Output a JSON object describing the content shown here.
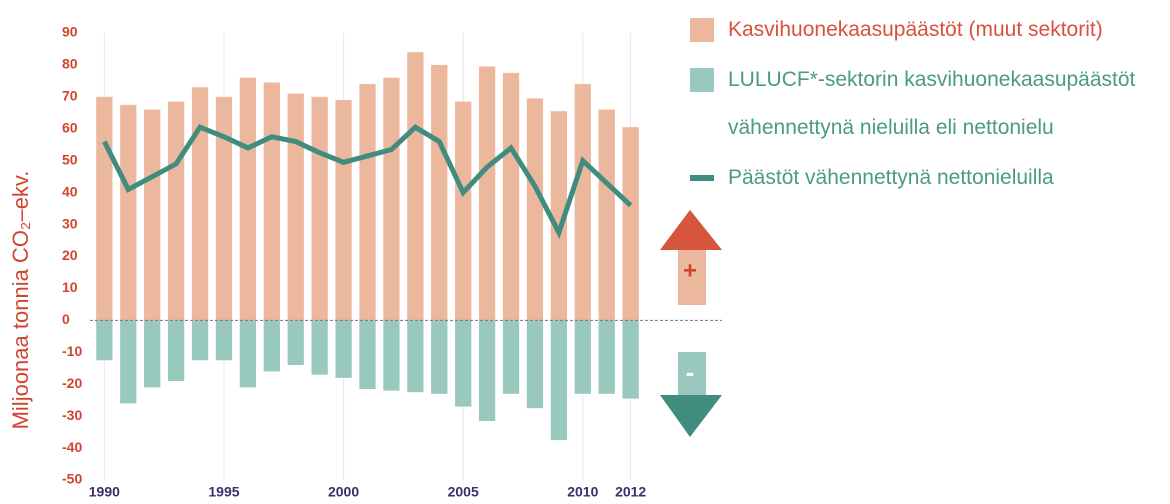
{
  "chart_data": {
    "type": "bar",
    "y_label": "Miljoonaa tonnia CO₂–ekv.",
    "x": [
      1990,
      1991,
      1992,
      1993,
      1994,
      1995,
      1996,
      1997,
      1998,
      1999,
      2000,
      2001,
      2002,
      2003,
      2004,
      2005,
      2006,
      2007,
      2008,
      2009,
      2010,
      2011,
      2012
    ],
    "xlim": [
      1989.4,
      2012.6
    ],
    "xticks": [
      1990,
      1995,
      2000,
      2005,
      2010,
      2012
    ],
    "ylim": [
      -50,
      90
    ],
    "yticks": [
      -50,
      -40,
      -30,
      -20,
      -10,
      0,
      10,
      20,
      30,
      40,
      50,
      60,
      70,
      80,
      90
    ],
    "grid": true,
    "legend": "right",
    "annotations": [
      "+",
      "-"
    ],
    "series": [
      {
        "name": "Kasvihuonekaasupäästöt (muut sektorit)",
        "color": "#ebb79d",
        "type": "bar",
        "values": [
          70,
          67.5,
          66,
          68.5,
          73,
          70,
          76,
          74.5,
          71,
          70,
          69,
          74,
          76,
          84,
          80,
          68.5,
          79.5,
          77.5,
          69.5,
          65.5,
          74,
          66,
          60.5
        ]
      },
      {
        "name": "LULUCF*-sektorin kasvihuonekaasupäästöt vähennettynä nieluilla eli nettonielu",
        "color": "#98c8be",
        "type": "bar",
        "values": [
          -12.5,
          -26,
          -21,
          -19,
          -12.5,
          -12.5,
          -21,
          -16,
          -14,
          -17,
          -18,
          -21.5,
          -22,
          -22.5,
          -23,
          -27,
          -31.5,
          -23,
          -27.5,
          -37.5,
          -23,
          -23,
          -24.5
        ]
      },
      {
        "name": "Päästöt vähennettynä nettonieluilla",
        "color": "#408c7e",
        "type": "line",
        "values": [
          56,
          41,
          45,
          49,
          60.5,
          57.5,
          54,
          57.5,
          56,
          52.5,
          49.5,
          51.5,
          53.5,
          60.5,
          56,
          40,
          48,
          54,
          42,
          27.5,
          50,
          43,
          36
        ]
      }
    ]
  }
}
